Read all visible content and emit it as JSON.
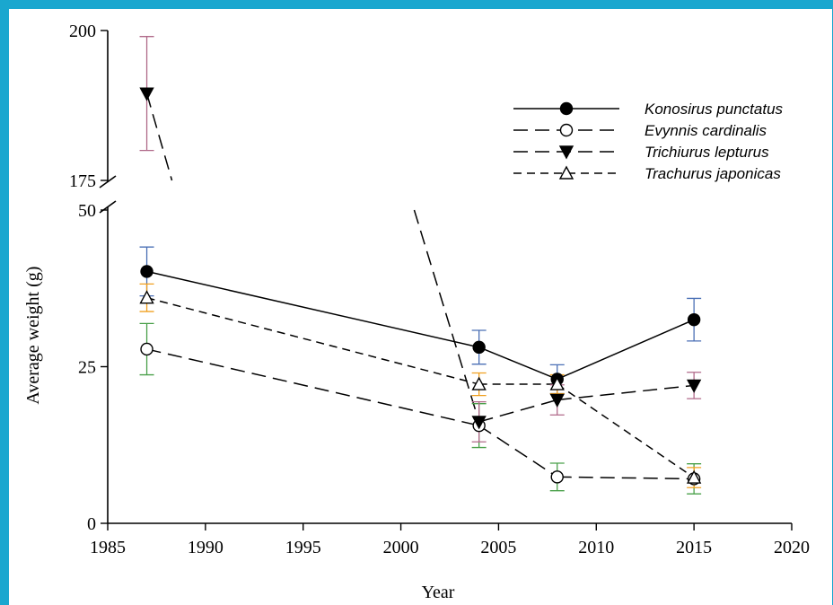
{
  "chart_data": {
    "type": "line",
    "xlabel": "Year",
    "ylabel": "Average weight (g)",
    "xlim": [
      1985,
      2020
    ],
    "x_ticks": [
      1985,
      1990,
      1995,
      2000,
      2005,
      2010,
      2015,
      2020
    ],
    "y_ticks_lower": [
      0,
      25,
      50
    ],
    "y_ticks_upper": [
      175,
      200
    ],
    "y_break": {
      "lower_max": 50,
      "upper_min": 175,
      "upper_max": 200
    },
    "legend_position": "top-right",
    "grid": false,
    "series": [
      {
        "name": "Konosirus punctatus",
        "marker": "filled-circle",
        "line": "solid",
        "x": [
          1987,
          2004,
          2008,
          2015
        ],
        "y": [
          40.2,
          28.1,
          23.0,
          32.5
        ],
        "err": [
          3.9,
          2.7,
          2.3,
          3.4
        ],
        "errcolor": [
          "#4a6fb5",
          "#4a6fb5",
          "#4a6fb5",
          "#4a6fb5"
        ]
      },
      {
        "name": "Evynnis cardinalis",
        "marker": "open-circle",
        "line": "long-dash",
        "x": [
          1987,
          2004,
          2008,
          2015
        ],
        "y": [
          27.8,
          15.6,
          7.4,
          7.1
        ],
        "err": [
          4.1,
          3.5,
          2.2,
          2.4
        ],
        "errcolor": [
          "#4aa04a",
          "#4aa04a",
          "#4aa04a",
          "#4aa04a"
        ]
      },
      {
        "name": "Trichiurus lepturus",
        "marker": "filled-triangle-down",
        "line": "long-dash",
        "x": [
          1987,
          2004,
          2008,
          2015
        ],
        "y": [
          189.5,
          16.2,
          19.7,
          22.0
        ],
        "err": [
          9.5,
          3.2,
          2.4,
          2.1
        ],
        "errcolor": [
          "#b06a8a",
          "#b06a8a",
          "#b06a8a",
          "#b06a8a"
        ]
      },
      {
        "name": "Trachurus japonicas",
        "marker": "open-triangle-up",
        "line": "short-dash",
        "x": [
          1987,
          2004,
          2008,
          2015
        ],
        "y": [
          36.0,
          22.2,
          22.2,
          7.3
        ],
        "err": [
          2.2,
          1.8,
          1.5,
          1.6
        ],
        "errcolor": [
          "#f0a020",
          "#f0a020",
          "#f0a020",
          "#f0a020"
        ]
      }
    ]
  }
}
